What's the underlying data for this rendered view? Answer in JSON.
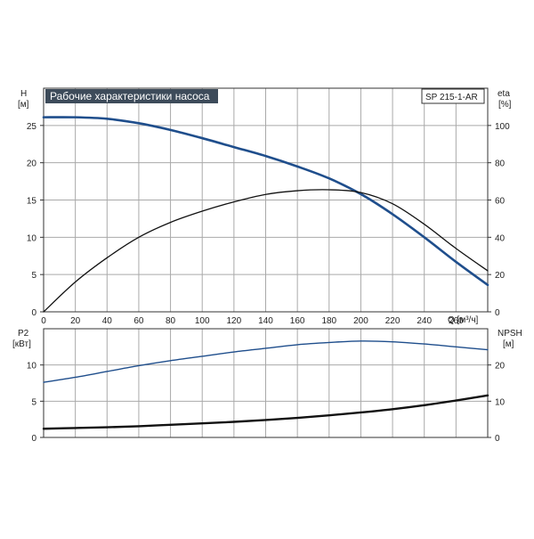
{
  "chart_data": [
    {
      "type": "line",
      "panel": "performance",
      "title": "Рабочие характеристики насоса",
      "model_label": "SP 215-1-AR",
      "xlabel": "Q [м³/ч]",
      "xlim": [
        0,
        280
      ],
      "x_ticks": [
        0,
        20,
        40,
        60,
        80,
        100,
        120,
        140,
        160,
        180,
        200,
        220,
        240,
        260
      ],
      "left_axis": {
        "label": "H",
        "unit": "[м]",
        "ylim": [
          0,
          30
        ],
        "ticks": [
          0,
          5,
          10,
          15,
          20,
          25
        ]
      },
      "right_axis": {
        "label": "eta",
        "unit": "[%]",
        "ylim": [
          0,
          120
        ],
        "ticks": [
          0,
          20,
          40,
          60,
          80,
          100
        ]
      },
      "grid": true,
      "series": [
        {
          "axis": "left",
          "color": "#1f4e8c",
          "x": [
            0,
            20,
            40,
            60,
            80,
            100,
            120,
            140,
            160,
            180,
            200,
            220,
            240,
            260,
            280
          ],
          "y": [
            26.1,
            26.1,
            25.9,
            25.3,
            24.4,
            23.3,
            22.1,
            20.9,
            19.5,
            17.9,
            15.8,
            13.1,
            10.0,
            6.7,
            3.6
          ]
        },
        {
          "axis": "right",
          "color": "#111111",
          "x": [
            0,
            20,
            40,
            60,
            80,
            100,
            120,
            140,
            160,
            180,
            200,
            220,
            240,
            260,
            280
          ],
          "y": [
            0,
            16,
            29,
            40,
            48,
            54,
            59,
            63,
            65,
            65.5,
            64,
            58,
            47,
            34,
            22
          ]
        }
      ]
    },
    {
      "type": "line",
      "panel": "power-npsh",
      "xlim": [
        0,
        280
      ],
      "left_axis": {
        "label": "P2",
        "unit": "[кВт]",
        "ylim": [
          0,
          15
        ],
        "ticks": [
          0,
          5,
          10
        ]
      },
      "right_axis": {
        "label": "NPSH",
        "unit": "[м]",
        "ylim": [
          0,
          30
        ],
        "ticks": [
          0,
          10,
          20
        ]
      },
      "grid": true,
      "series": [
        {
          "axis": "left",
          "color": "#1f4e8c",
          "x": [
            0,
            20,
            40,
            60,
            80,
            100,
            120,
            140,
            160,
            180,
            200,
            220,
            240,
            260,
            280
          ],
          "y": [
            7.6,
            8.3,
            9.1,
            9.9,
            10.6,
            11.2,
            11.8,
            12.3,
            12.8,
            13.1,
            13.3,
            13.2,
            12.9,
            12.5,
            12.1
          ]
        },
        {
          "axis": "right",
          "color": "#111111",
          "x": [
            0,
            20,
            40,
            60,
            80,
            100,
            120,
            140,
            160,
            180,
            200,
            220,
            240,
            260,
            280
          ],
          "y": [
            2.4,
            2.6,
            2.8,
            3.1,
            3.5,
            3.9,
            4.3,
            4.8,
            5.4,
            6.1,
            6.9,
            7.8,
            8.9,
            10.2,
            11.6
          ]
        }
      ]
    }
  ]
}
